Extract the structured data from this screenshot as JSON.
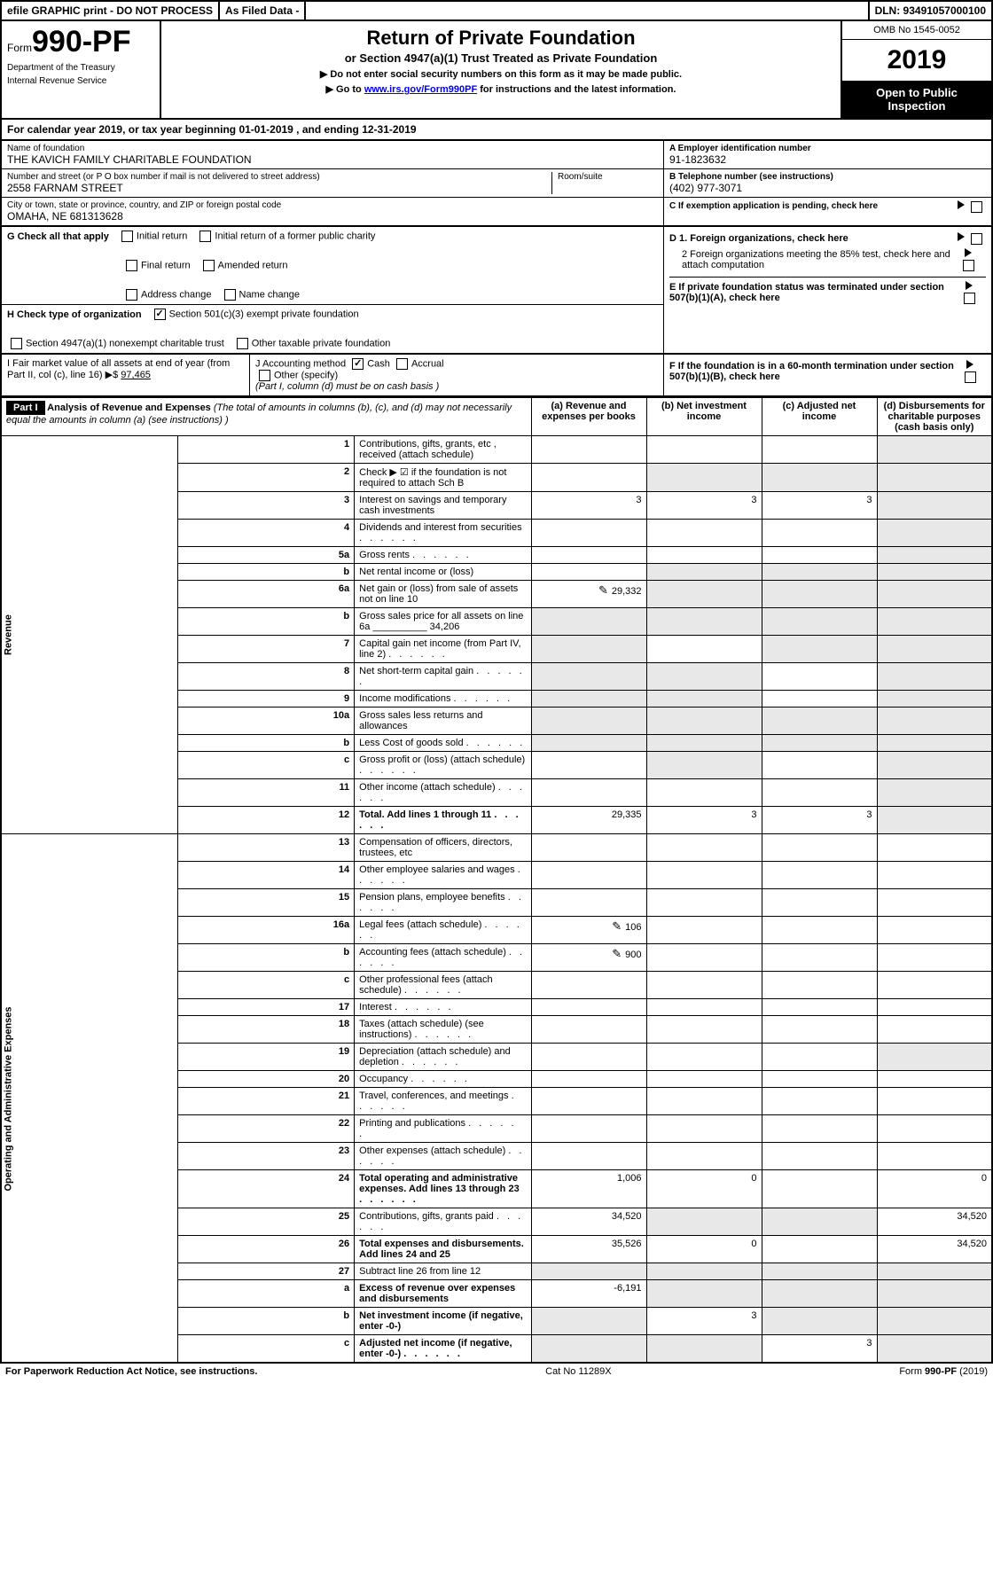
{
  "top_bar": {
    "efile": "efile GRAPHIC print - DO NOT PROCESS",
    "asfiled": "As Filed Data -",
    "dln": "DLN: 93491057000100"
  },
  "header": {
    "form_prefix": "Form",
    "form_number": "990-PF",
    "dept": "Department of the Treasury",
    "irs": "Internal Revenue Service",
    "title": "Return of Private Foundation",
    "subtitle": "or Section 4947(a)(1) Trust Treated as Private Foundation",
    "inst1": "▶ Do not enter social security numbers on this form as it may be made public.",
    "inst2_pre": "▶ Go to ",
    "inst2_link": "www.irs.gov/Form990PF",
    "inst2_post": " for instructions and the latest information.",
    "omb": "OMB No 1545-0052",
    "year": "2019",
    "open": "Open to Public Inspection"
  },
  "cal": {
    "pre": "For calendar year 2019, or tax year beginning ",
    "begin": "01-01-2019",
    "mid": " , and ending ",
    "end": "12-31-2019"
  },
  "entity": {
    "name_lbl": "Name of foundation",
    "name": "THE KAVICH FAMILY CHARITABLE FOUNDATION",
    "addr_lbl": "Number and street (or P O box number if mail is not delivered to street address)",
    "addr": "2558 FARNAM STREET",
    "room_lbl": "Room/suite",
    "city_lbl": "City or town, state or province, country, and ZIP or foreign postal code",
    "city": "OMAHA, NE 681313628",
    "a_lbl": "A Employer identification number",
    "a_val": "91-1823632",
    "b_lbl": "B Telephone number (see instructions)",
    "b_val": "(402) 977-3071",
    "c_lbl": "C If exemption application is pending, check here"
  },
  "g": {
    "lbl": "G Check all that apply",
    "opts": [
      "Initial return",
      "Initial return of a former public charity",
      "Final return",
      "Amended return",
      "Address change",
      "Name change"
    ]
  },
  "h": {
    "lbl": "H Check type of organization",
    "opt1": "Section 501(c)(3) exempt private foundation",
    "opt2": "Section 4947(a)(1) nonexempt charitable trust",
    "opt3": "Other taxable private foundation"
  },
  "d": {
    "d1": "D 1. Foreign organizations, check here",
    "d2": "2 Foreign organizations meeting the 85% test, check here and attach computation",
    "e": "E If private foundation status was terminated under section 507(b)(1)(A), check here",
    "f": "F If the foundation is in a 60-month termination under section 507(b)(1)(B), check here"
  },
  "i": {
    "lbl": "I Fair market value of all assets at end of year (from Part II, col (c), line 16) ▶$ ",
    "val": "97,465"
  },
  "j": {
    "lbl": "J Accounting method",
    "cash": "Cash",
    "accrual": "Accrual",
    "other": "Other (specify)",
    "note": "(Part I, column (d) must be on cash basis )"
  },
  "part1_header": {
    "badge": "Part I",
    "title": "Analysis of Revenue and Expenses",
    "sub": "(The total of amounts in columns (b), (c), and (d) may not necessarily equal the amounts in column (a) (see instructions) )",
    "col_a": "(a) Revenue and expenses per books",
    "col_b": "(b) Net investment income",
    "col_c": "(c) Adjusted net income",
    "col_d": "(d) Disbursements for charitable purposes (cash basis only)"
  },
  "side_labels": {
    "revenue": "Revenue",
    "opex": "Operating and Administrative Expenses"
  },
  "rows": [
    {
      "n": "1",
      "t": "Contributions, gifts, grants, etc , received (attach schedule)",
      "a": "",
      "b": "",
      "c": "",
      "d": "",
      "ds": true
    },
    {
      "n": "2",
      "t": "Check ▶ ☑ if the foundation is not required to attach Sch B",
      "a": "",
      "b": "",
      "c": "",
      "d": "",
      "ds": true,
      "shadeBCD": true,
      "bold_not": true
    },
    {
      "n": "3",
      "t": "Interest on savings and temporary cash investments",
      "a": "3",
      "b": "3",
      "c": "3",
      "d": "",
      "ds": true
    },
    {
      "n": "4",
      "t": "Dividends and interest from securities",
      "a": "",
      "b": "",
      "c": "",
      "d": "",
      "ds": true,
      "dots": true
    },
    {
      "n": "5a",
      "t": "Gross rents",
      "a": "",
      "b": "",
      "c": "",
      "d": "",
      "ds": true,
      "dots": true
    },
    {
      "n": "b",
      "t": "Net rental income or (loss)",
      "a": "",
      "b": "",
      "c": "",
      "d": "",
      "ds": true,
      "shadeBCD": true
    },
    {
      "n": "6a",
      "t": "Net gain or (loss) from sale of assets not on line 10",
      "a": "29,332",
      "b": "",
      "c": "",
      "d": "",
      "ds": true,
      "linkA": true,
      "shadeBC": true
    },
    {
      "n": "b",
      "t": "Gross sales price for all assets on line 6a __________ 34,206",
      "a": "",
      "b": "",
      "c": "",
      "d": "",
      "ds": true,
      "shadeAll": true
    },
    {
      "n": "7",
      "t": "Capital gain net income (from Part IV, line 2)",
      "a": "",
      "b": "",
      "c": "",
      "d": "",
      "ds": true,
      "dots": true,
      "shadeA": true,
      "shadeCD": true
    },
    {
      "n": "8",
      "t": "Net short-term capital gain",
      "a": "",
      "b": "",
      "c": "",
      "d": "",
      "ds": true,
      "dots": true,
      "shadeAB": true,
      "shadeD": true
    },
    {
      "n": "9",
      "t": "Income modifications",
      "a": "",
      "b": "",
      "c": "",
      "d": "",
      "ds": true,
      "dots": true,
      "shadeAB": true,
      "shadeD": true
    },
    {
      "n": "10a",
      "t": "Gross sales less returns and allowances",
      "a": "",
      "b": "",
      "c": "",
      "d": "",
      "ds": true,
      "shadeAll": true
    },
    {
      "n": "b",
      "t": "Less Cost of goods sold",
      "a": "",
      "b": "",
      "c": "",
      "d": "",
      "ds": true,
      "dots": true,
      "shadeAll": true
    },
    {
      "n": "c",
      "t": "Gross profit or (loss) (attach schedule)",
      "a": "",
      "b": "",
      "c": "",
      "d": "",
      "ds": true,
      "dots": true,
      "shadeB": true,
      "shadeD": true
    },
    {
      "n": "11",
      "t": "Other income (attach schedule)",
      "a": "",
      "b": "",
      "c": "",
      "d": "",
      "ds": true,
      "dots": true
    },
    {
      "n": "12",
      "t": "Total. Add lines 1 through 11",
      "a": "29,335",
      "b": "3",
      "c": "3",
      "d": "",
      "ds": true,
      "dots": true,
      "bold": true
    },
    {
      "n": "13",
      "t": "Compensation of officers, directors, trustees, etc",
      "a": "",
      "b": "",
      "c": "",
      "d": ""
    },
    {
      "n": "14",
      "t": "Other employee salaries and wages",
      "a": "",
      "b": "",
      "c": "",
      "d": "",
      "dots": true
    },
    {
      "n": "15",
      "t": "Pension plans, employee benefits",
      "a": "",
      "b": "",
      "c": "",
      "d": "",
      "dots": true
    },
    {
      "n": "16a",
      "t": "Legal fees (attach schedule)",
      "a": "106",
      "b": "",
      "c": "",
      "d": "",
      "dots": true,
      "linkA": true
    },
    {
      "n": "b",
      "t": "Accounting fees (attach schedule)",
      "a": "900",
      "b": "",
      "c": "",
      "d": "",
      "dots": true,
      "linkA": true
    },
    {
      "n": "c",
      "t": "Other professional fees (attach schedule)",
      "a": "",
      "b": "",
      "c": "",
      "d": "",
      "dots": true
    },
    {
      "n": "17",
      "t": "Interest",
      "a": "",
      "b": "",
      "c": "",
      "d": "",
      "dots": true
    },
    {
      "n": "18",
      "t": "Taxes (attach schedule) (see instructions)",
      "a": "",
      "b": "",
      "c": "",
      "d": "",
      "dots": true
    },
    {
      "n": "19",
      "t": "Depreciation (attach schedule) and depletion",
      "a": "",
      "b": "",
      "c": "",
      "d": "",
      "dots": true,
      "shadeD": true
    },
    {
      "n": "20",
      "t": "Occupancy",
      "a": "",
      "b": "",
      "c": "",
      "d": "",
      "dots": true
    },
    {
      "n": "21",
      "t": "Travel, conferences, and meetings",
      "a": "",
      "b": "",
      "c": "",
      "d": "",
      "dots": true
    },
    {
      "n": "22",
      "t": "Printing and publications",
      "a": "",
      "b": "",
      "c": "",
      "d": "",
      "dots": true
    },
    {
      "n": "23",
      "t": "Other expenses (attach schedule)",
      "a": "",
      "b": "",
      "c": "",
      "d": "",
      "dots": true
    },
    {
      "n": "24",
      "t": "Total operating and administrative expenses. Add lines 13 through 23",
      "a": "1,006",
      "b": "0",
      "c": "",
      "d": "0",
      "dots": true,
      "bold": true
    },
    {
      "n": "25",
      "t": "Contributions, gifts, grants paid",
      "a": "34,520",
      "b": "",
      "c": "",
      "d": "34,520",
      "dots": true,
      "shadeBC": true
    },
    {
      "n": "26",
      "t": "Total expenses and disbursements. Add lines 24 and 25",
      "a": "35,526",
      "b": "0",
      "c": "",
      "d": "34,520",
      "bold": true
    },
    {
      "n": "27",
      "t": "Subtract line 26 from line 12",
      "a": "",
      "b": "",
      "c": "",
      "d": "",
      "shadeAll": true
    },
    {
      "n": "a",
      "t": "Excess of revenue over expenses and disbursements",
      "a": "-6,191",
      "b": "",
      "c": "",
      "d": "",
      "bold": true,
      "shadeBCD": true
    },
    {
      "n": "b",
      "t": "Net investment income (if negative, enter -0-)",
      "a": "",
      "b": "3",
      "c": "",
      "d": "",
      "bold": true,
      "shadeA": true,
      "shadeCD": true
    },
    {
      "n": "c",
      "t": "Adjusted net income (if negative, enter -0-)",
      "a": "",
      "b": "",
      "c": "3",
      "d": "",
      "bold": true,
      "dots": true,
      "shadeAB": true,
      "shadeD": true
    }
  ],
  "footer": {
    "left": "For Paperwork Reduction Act Notice, see instructions.",
    "mid": "Cat No 11289X",
    "right_pre": "Form ",
    "right_bold": "990-PF",
    "right_post": " (2019)"
  }
}
